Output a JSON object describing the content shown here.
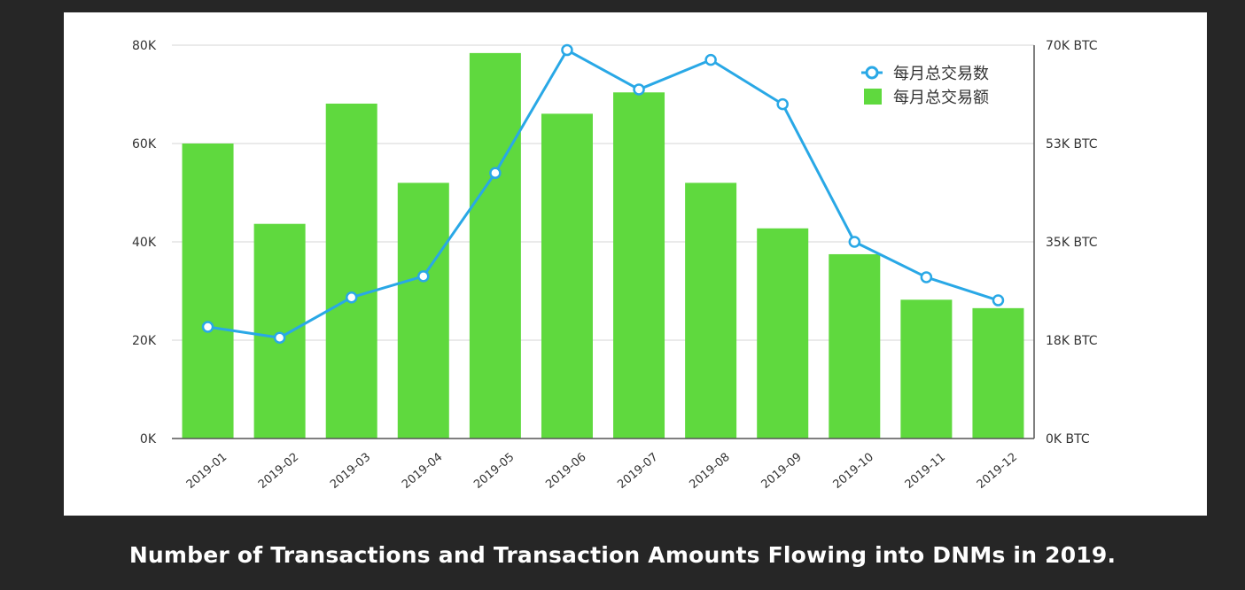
{
  "caption": "Number of Transactions and Transaction Amounts Flowing into DNMs in 2019.",
  "chart_data": {
    "type": "bar",
    "title": "",
    "categories": [
      "2019-01",
      "2019-02",
      "2019-03",
      "2019-04",
      "2019-05",
      "2019-06",
      "2019-07",
      "2019-08",
      "2019-09",
      "2019-10",
      "2019-11",
      "2019-12"
    ],
    "series": [
      {
        "name": "每月总交易额",
        "type": "bar",
        "axis": "right",
        "color": "#5fd93e",
        "values": [
          52.5,
          38.2,
          59.6,
          45.5,
          68.6,
          57.8,
          61.6,
          45.5,
          37.4,
          32.8,
          24.7,
          23.2
        ]
      },
      {
        "name": "每月总交易数",
        "type": "line",
        "axis": "left",
        "color": "#29a8e6",
        "values": [
          22700,
          20500,
          28700,
          33000,
          54000,
          79000,
          71000,
          77000,
          68000,
          40000,
          32800,
          28100
        ]
      }
    ],
    "y_left": {
      "ticks": [
        "0K",
        "20K",
        "40K",
        "60K",
        "80K"
      ],
      "tick_values": [
        0,
        20000,
        40000,
        60000,
        80000
      ],
      "range": [
        0,
        80000
      ]
    },
    "y_right": {
      "ticks": [
        "0K BTC",
        "18K BTC",
        "35K BTC",
        "53K BTC",
        "70K BTC"
      ],
      "tick_values": [
        0,
        17.5,
        35,
        52.5,
        70
      ],
      "range": [
        0,
        70
      ],
      "unit": "K BTC"
    },
    "legend": {
      "placement": "top-right"
    },
    "grid": true
  }
}
